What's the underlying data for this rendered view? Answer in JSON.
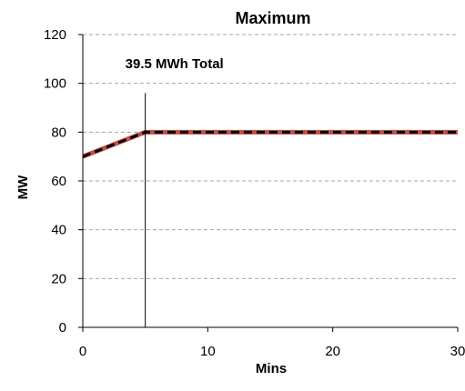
{
  "chart_data": {
    "type": "line",
    "title": "Maximum",
    "xlabel": "Mins",
    "ylabel": "MW",
    "xlim": [
      0,
      30
    ],
    "ylim": [
      0,
      120
    ],
    "x_ticks": [
      0,
      10,
      20,
      30
    ],
    "y_ticks": [
      0,
      20,
      40,
      60,
      80,
      100,
      120
    ],
    "grid": "horizontal dashed",
    "legend": "none",
    "series": [
      {
        "color": "#c0504d",
        "style": "solid",
        "x": [
          0,
          5,
          30
        ],
        "y": [
          70,
          80,
          80
        ]
      },
      {
        "color": "#000000",
        "style": "dashed",
        "x": [
          0,
          5,
          30
        ],
        "y": [
          70,
          80,
          80
        ]
      }
    ],
    "annotations": [
      {
        "text": "39.5 MWh Total",
        "x": 5,
        "y": 107
      }
    ],
    "vertical_line": {
      "x": 5
    }
  }
}
